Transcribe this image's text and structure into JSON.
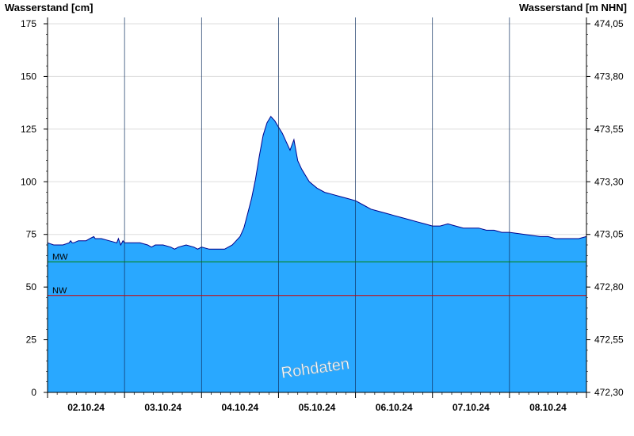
{
  "chart_data": {
    "type": "area",
    "left_axis_title": "Wasserstand [cm]",
    "right_axis_title": "Wasserstand [m NHN]",
    "ylim": [
      0,
      175
    ],
    "yticks": [
      0,
      25,
      50,
      75,
      100,
      125,
      150,
      175
    ],
    "right_yticks": [
      "472,30",
      "472,55",
      "472,80",
      "473,05",
      "473,30",
      "473,55",
      "473,80",
      "474,05"
    ],
    "xlim": [
      0,
      7
    ],
    "day_labels": [
      "02.10.24",
      "03.10.24",
      "04.10.24",
      "05.10.24",
      "06.10.24",
      "07.10.24",
      "08.10.24"
    ],
    "watermark": "Rohdaten",
    "fill_color": "#29a8ff",
    "line_color": "#00008b",
    "reference_lines": [
      {
        "label": "MW",
        "value": 62,
        "color": "#008000"
      },
      {
        "label": "NW",
        "value": 46,
        "color": "#d00000"
      }
    ],
    "series": [
      {
        "x": [
          0,
          0.08,
          0.1,
          0.2,
          0.28,
          0.3,
          0.32,
          0.34,
          0.4,
          0.5,
          0.55,
          0.6,
          0.62,
          0.65,
          0.7,
          0.8,
          0.9,
          0.92,
          0.95,
          0.98,
          1.0,
          1.1,
          1.2,
          1.3,
          1.35,
          1.4,
          1.5,
          1.6,
          1.65,
          1.7,
          1.8,
          1.9,
          1.95,
          2.0,
          2.1,
          2.2,
          2.3,
          2.4,
          2.45,
          2.5,
          2.55,
          2.6,
          2.65,
          2.7,
          2.75,
          2.8,
          2.85,
          2.9,
          2.95,
          3.0,
          3.05,
          3.1,
          3.15,
          3.2,
          3.25,
          3.3,
          3.35,
          3.4,
          3.5,
          3.6,
          3.7,
          3.8,
          3.9,
          4.0,
          4.1,
          4.2,
          4.3,
          4.4,
          4.5,
          4.6,
          4.7,
          4.8,
          4.9,
          5.0,
          5.1,
          5.2,
          5.3,
          5.4,
          5.5,
          5.6,
          5.7,
          5.8,
          5.9,
          6.0,
          6.2,
          6.4,
          6.5,
          6.6,
          6.7,
          6.8,
          6.9,
          7.0
        ],
        "values": [
          71,
          70,
          70,
          70,
          71,
          72,
          71,
          71,
          72,
          72,
          73,
          74,
          73,
          73,
          73,
          72,
          71,
          73,
          70,
          72,
          71,
          71,
          71,
          70,
          69,
          70,
          70,
          69,
          68,
          69,
          70,
          69,
          68,
          69,
          68,
          68,
          68,
          70,
          72,
          74,
          78,
          85,
          92,
          101,
          112,
          122,
          128,
          131,
          129,
          126,
          123,
          119,
          115,
          120,
          110,
          106,
          103,
          100,
          97,
          95,
          94,
          93,
          92,
          91,
          89,
          87,
          86,
          85,
          84,
          83,
          82,
          81,
          80,
          79,
          79,
          80,
          79,
          78,
          78,
          78,
          77,
          77,
          76,
          76,
          75,
          74,
          74,
          73,
          73,
          73,
          73,
          74
        ]
      }
    ]
  }
}
